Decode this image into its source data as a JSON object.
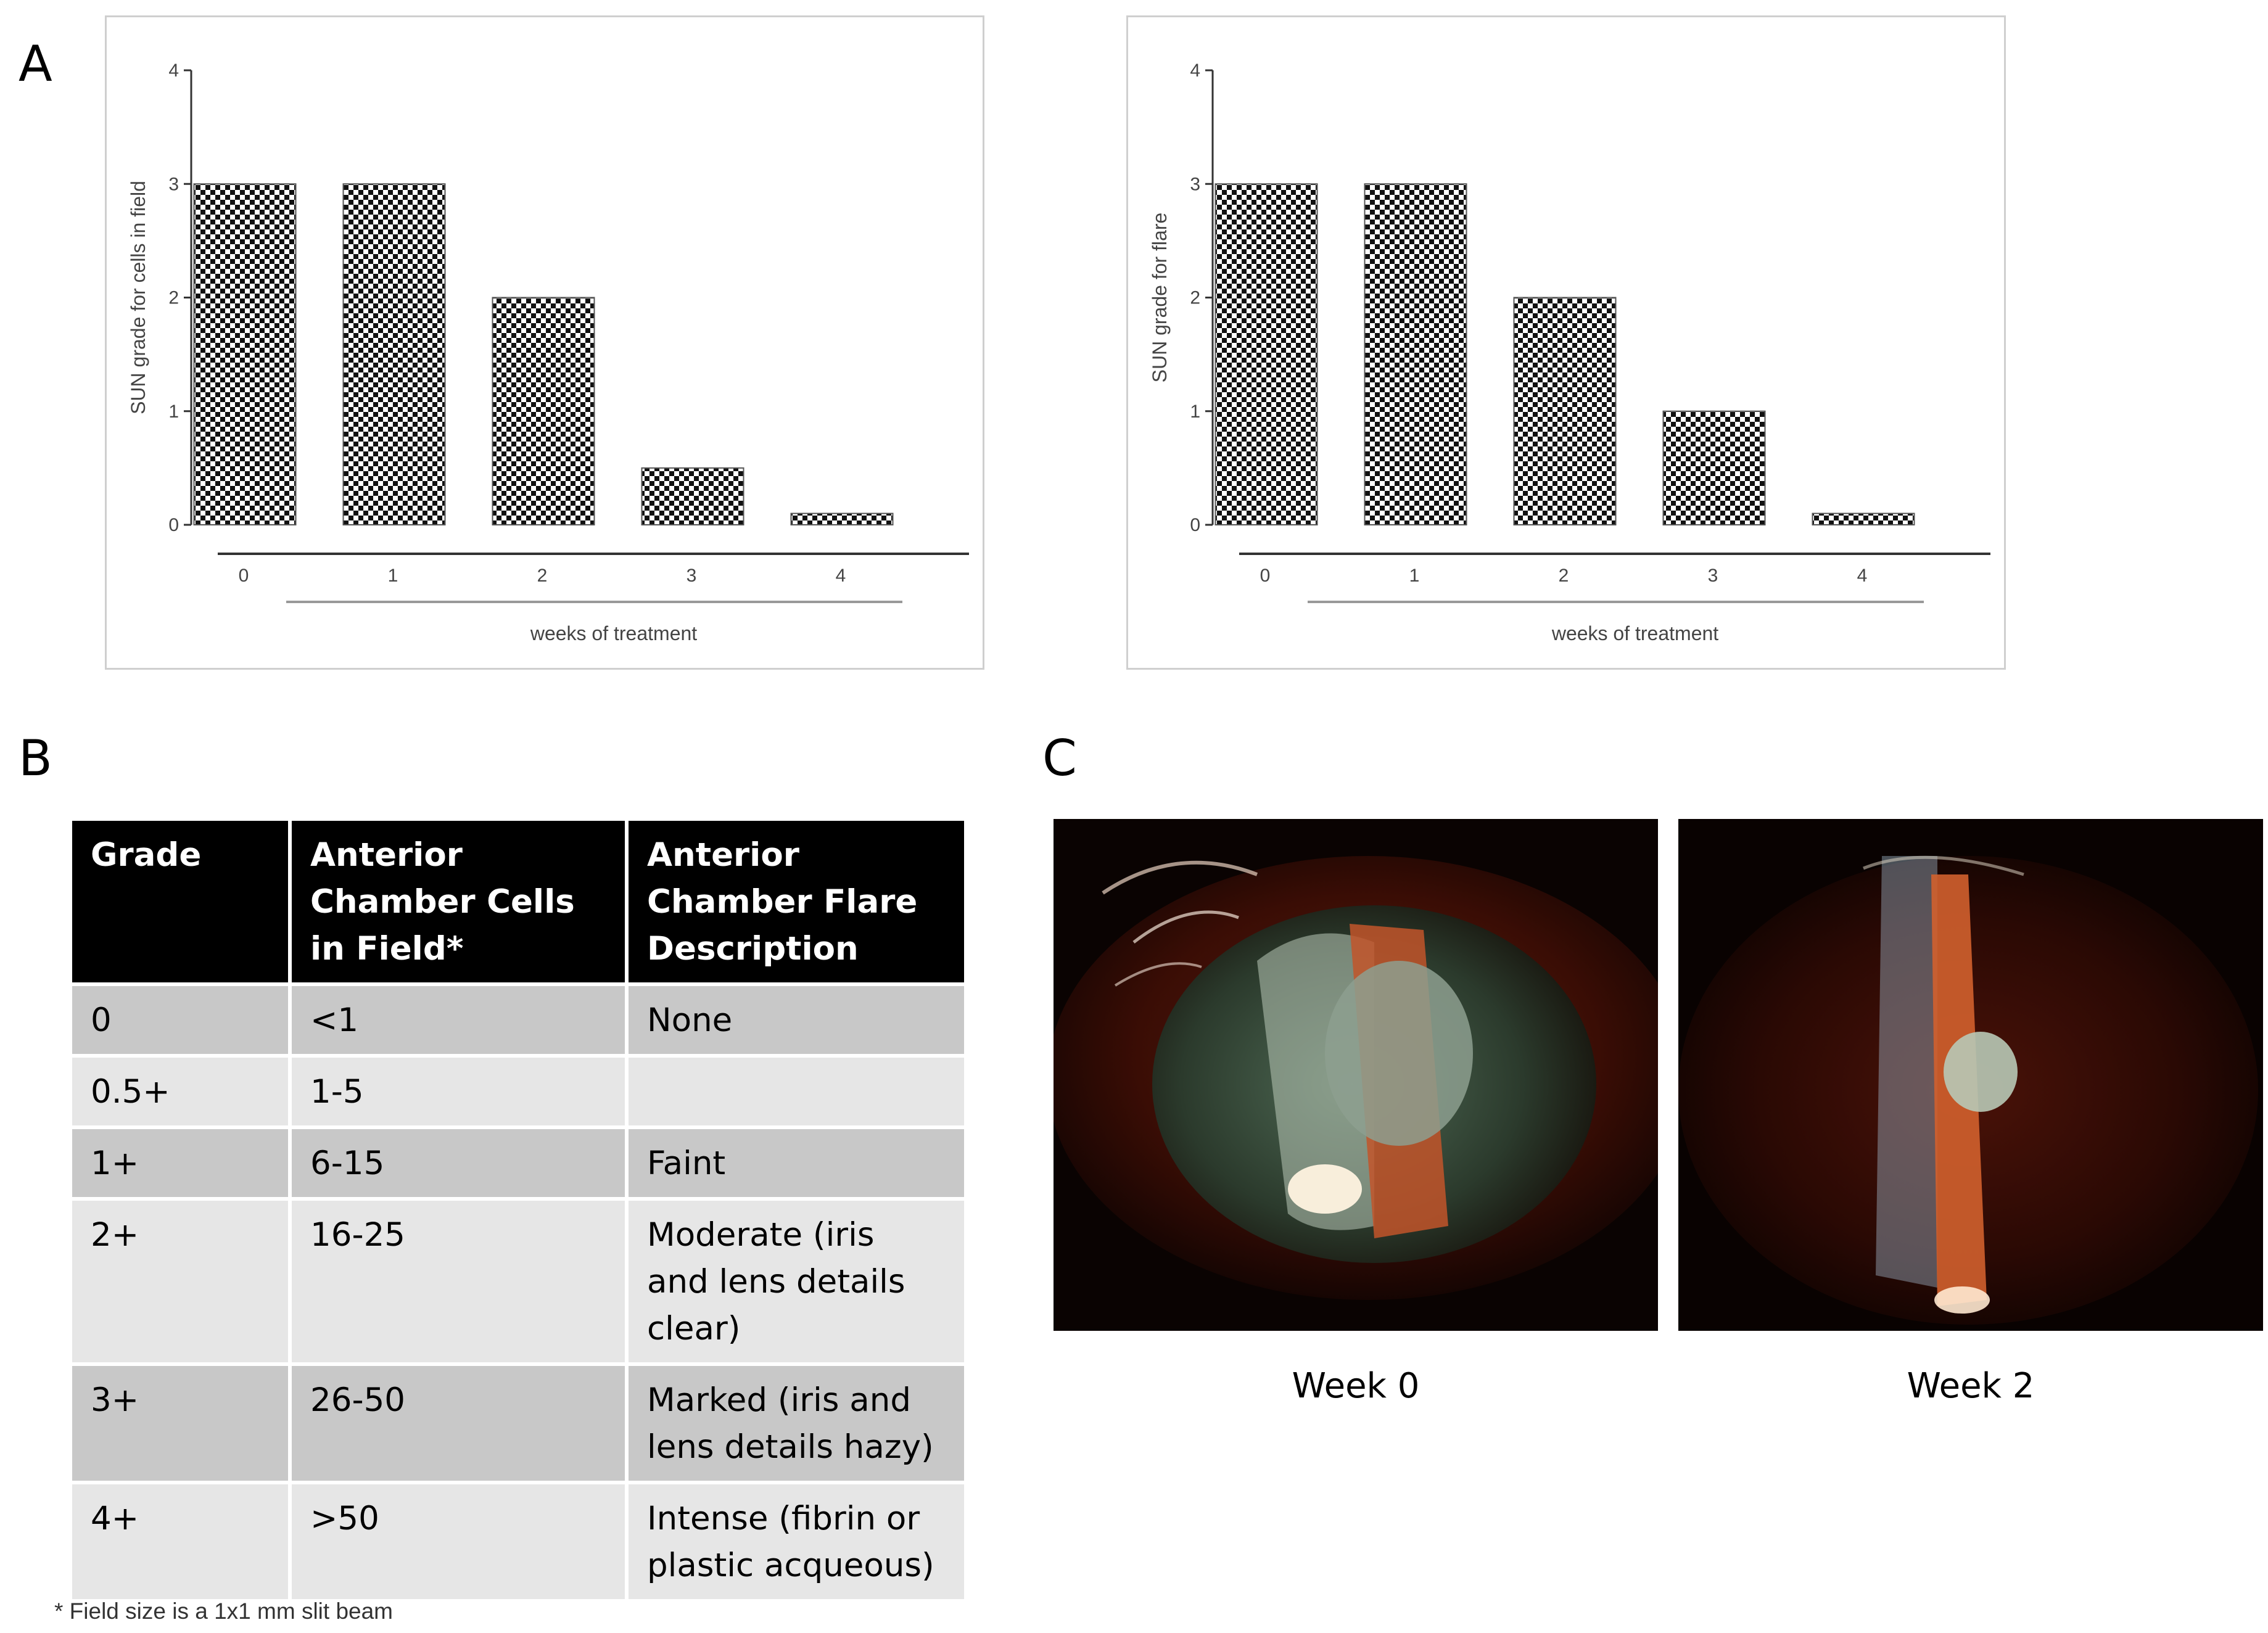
{
  "panels": {
    "a": "A",
    "b": "B",
    "c": "C"
  },
  "chart_data": [
    {
      "type": "bar",
      "title": "",
      "categories": [
        "0",
        "1",
        "2",
        "3",
        "4"
      ],
      "values": [
        3,
        3,
        2,
        0.5,
        0.1
      ],
      "xlabel": "weeks of treatment",
      "ylabel": "SUN grade for cells in field",
      "ylim": [
        0,
        4
      ],
      "yticks": [
        "0",
        "1",
        "2",
        "3",
        "4"
      ],
      "pattern": "checkerboard"
    },
    {
      "type": "bar",
      "title": "",
      "categories": [
        "0",
        "1",
        "2",
        "3",
        "4"
      ],
      "values": [
        3,
        3,
        2,
        1,
        0.1
      ],
      "xlabel": "weeks of treatment",
      "ylabel": "SUN grade for flare",
      "ylim": [
        0,
        4
      ],
      "yticks": [
        "0",
        "1",
        "2",
        "3",
        "4"
      ],
      "pattern": "checkerboard"
    }
  ],
  "table": {
    "headers": [
      "Grade",
      "Anterior Chamber Cells in Field*",
      "Anterior Chamber Flare Description"
    ],
    "rows": [
      [
        "0",
        "<1",
        "None"
      ],
      [
        "0.5+",
        "1-5",
        ""
      ],
      [
        "1+",
        "6-15",
        "Faint"
      ],
      [
        "2+",
        "16-25",
        "Moderate (iris and lens details clear)"
      ],
      [
        "3+",
        "26-50",
        "Marked (iris and lens details hazy)"
      ],
      [
        "4+",
        ">50",
        "Intense (fibrin or plastic acqueous)"
      ]
    ],
    "footnote": "* Field size is a 1x1 mm slit beam"
  },
  "photos": [
    {
      "caption": "Week 0",
      "icon": "slit-lamp-eye-photo"
    },
    {
      "caption": "Week 2",
      "icon": "slit-lamp-eye-photo"
    }
  ]
}
